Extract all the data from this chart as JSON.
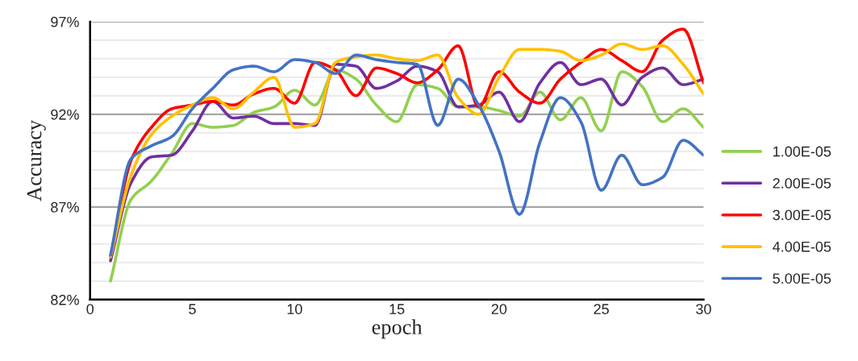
{
  "chart_data": {
    "type": "line",
    "xlabel": "epoch",
    "ylabel": "Accuracy",
    "x": [
      1,
      2,
      3,
      4,
      5,
      6,
      7,
      8,
      9,
      10,
      11,
      12,
      13,
      14,
      15,
      16,
      17,
      18,
      19,
      20,
      21,
      22,
      23,
      24,
      25,
      26,
      27,
      28,
      29,
      30
    ],
    "xlim": [
      0,
      30
    ],
    "xticks": [
      0,
      5,
      10,
      15,
      20,
      25,
      30
    ],
    "ylim": [
      82,
      97
    ],
    "yticks": [
      {
        "value": 82,
        "label": "82%"
      },
      {
        "value": 83,
        "label": null
      },
      {
        "value": 84,
        "label": null
      },
      {
        "value": 85,
        "label": null
      },
      {
        "value": 86,
        "label": null
      },
      {
        "value": 87,
        "label": "87%"
      },
      {
        "value": 88,
        "label": null
      },
      {
        "value": 89,
        "label": null
      },
      {
        "value": 90,
        "label": null
      },
      {
        "value": 91,
        "label": null
      },
      {
        "value": 92,
        "label": "92%"
      },
      {
        "value": 93,
        "label": null
      },
      {
        "value": 94,
        "label": null
      },
      {
        "value": 95,
        "label": null
      },
      {
        "value": 96,
        "label": null
      },
      {
        "value": 97,
        "label": "97%"
      }
    ],
    "grid": "y",
    "legend": "right",
    "marker": "none",
    "line_style": "solid",
    "series": [
      {
        "name": "1.00E-05",
        "color": "#92d050",
        "values": [
          83.0,
          87.4,
          88.4,
          89.9,
          91.5,
          91.3,
          91.4,
          92.1,
          92.4,
          93.3,
          92.5,
          94.4,
          93.9,
          92.5,
          91.6,
          93.6,
          93.4,
          92.4,
          92.4,
          92.2,
          91.9,
          93.2,
          91.7,
          92.9,
          91.1,
          94.3,
          93.5,
          91.6,
          92.3,
          91.3
        ]
      },
      {
        "name": "2.00E-05",
        "color": "#7030a0",
        "values": [
          84.1,
          88.3,
          89.7,
          89.8,
          91.1,
          92.7,
          91.8,
          91.9,
          91.5,
          91.5,
          91.4,
          94.7,
          94.6,
          93.4,
          93.8,
          94.6,
          94.3,
          92.4,
          92.5,
          93.2,
          91.6,
          93.7,
          94.8,
          93.6,
          93.9,
          92.5,
          94.0,
          94.5,
          93.6,
          93.9
        ]
      },
      {
        "name": "3.00E-05",
        "color": "#ff0000",
        "values": [
          84.3,
          89.5,
          91.3,
          92.3,
          92.5,
          92.7,
          92.5,
          93.1,
          93.4,
          92.6,
          94.8,
          94.4,
          93.0,
          94.5,
          94.2,
          93.7,
          94.4,
          95.7,
          92.4,
          94.3,
          93.2,
          92.6,
          93.9,
          94.8,
          95.5,
          94.9,
          94.3,
          96.0,
          96.6,
          93.7
        ]
      },
      {
        "name": "4.00E-05",
        "color": "#ffc000",
        "values": [
          84.3,
          88.7,
          90.9,
          91.9,
          92.5,
          92.9,
          92.3,
          93.2,
          94.0,
          91.3,
          91.5,
          94.8,
          95.1,
          95.2,
          95.0,
          94.9,
          95.2,
          92.9,
          92.0,
          94.0,
          95.5,
          95.5,
          95.4,
          94.9,
          95.2,
          95.8,
          95.5,
          95.7,
          94.7,
          93.1
        ]
      },
      {
        "name": "5.00E-05",
        "color": "#4472c4",
        "values": [
          84.4,
          89.6,
          90.3,
          90.8,
          92.3,
          93.4,
          94.4,
          94.6,
          94.3,
          94.95,
          94.8,
          94.2,
          95.2,
          94.95,
          94.8,
          94.7,
          91.4,
          93.9,
          92.5,
          90.0,
          86.6,
          90.5,
          92.9,
          91.6,
          87.9,
          89.8,
          88.2,
          88.6,
          90.6,
          89.8
        ]
      }
    ]
  }
}
